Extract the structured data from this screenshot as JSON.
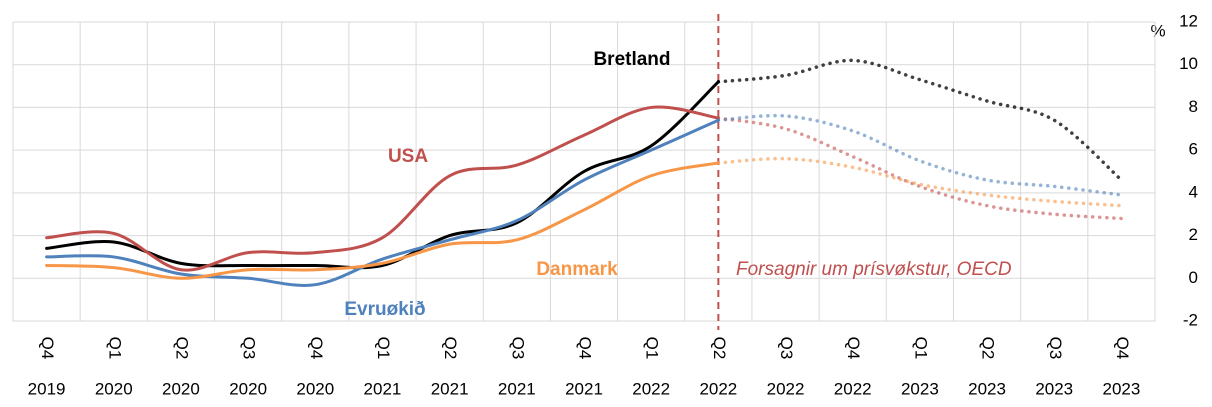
{
  "chart_data": {
    "type": "line",
    "categories": [
      [
        "Q4",
        "2019"
      ],
      [
        "Q1",
        "2020"
      ],
      [
        "Q2",
        "2020"
      ],
      [
        "Q3",
        "2020"
      ],
      [
        "Q4",
        "2020"
      ],
      [
        "Q1",
        "2021"
      ],
      [
        "Q2",
        "2021"
      ],
      [
        "Q3",
        "2021"
      ],
      [
        "Q4",
        "2021"
      ],
      [
        "Q1",
        "2022"
      ],
      [
        "Q2",
        "2022"
      ],
      [
        "Q3",
        "2022"
      ],
      [
        "Q4",
        "2022"
      ],
      [
        "Q1",
        "2023"
      ],
      [
        "Q2",
        "2023"
      ],
      [
        "Q3",
        "2023"
      ],
      [
        "Q4",
        "2023"
      ]
    ],
    "forecast_from": 10,
    "series": [
      {
        "name": "Bretland",
        "color": "#000000",
        "values": [
          1.4,
          1.7,
          0.7,
          0.6,
          0.6,
          0.6,
          2.0,
          2.6,
          5.0,
          6.2,
          9.2,
          9.5,
          10.2,
          9.3,
          8.3,
          7.4,
          4.6
        ]
      },
      {
        "name": "USA",
        "color": "#c0504d",
        "values": [
          1.9,
          2.1,
          0.4,
          1.2,
          1.2,
          1.9,
          4.8,
          5.3,
          6.7,
          8.0,
          7.5,
          7.0,
          5.7,
          4.3,
          3.4,
          3.0,
          2.8
        ]
      },
      {
        "name": "Evruøkið",
        "color": "#4f81bd",
        "values": [
          1.0,
          1.0,
          0.2,
          0.0,
          -0.3,
          0.9,
          1.8,
          2.7,
          4.6,
          6.0,
          7.4,
          7.6,
          6.9,
          5.5,
          4.6,
          4.3,
          3.9
        ]
      },
      {
        "name": "Danmark",
        "color": "#f79646",
        "values": [
          0.6,
          0.5,
          0.0,
          0.4,
          0.4,
          0.7,
          1.6,
          1.8,
          3.2,
          4.8,
          5.4,
          5.6,
          5.2,
          4.4,
          3.9,
          3.6,
          3.4
        ]
      }
    ],
    "y_unit": "%",
    "ylim": [
      -2,
      12
    ],
    "yticks": [
      -2,
      0,
      2,
      4,
      6,
      8,
      10,
      12
    ],
    "grid": true,
    "annotation": "Forsagnir um prísvøkstur,  OECD"
  }
}
